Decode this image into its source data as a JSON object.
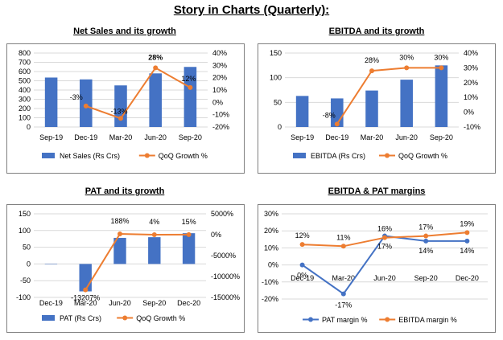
{
  "page": {
    "title": "Story in Charts (Quarterly):"
  },
  "colors": {
    "bar": "#4472C4",
    "line_orange": "#ED7D31",
    "line_blue": "#4472C4",
    "grid": "#d9d9d9",
    "frame": "#808080"
  },
  "chart_data": [
    {
      "type": "bar",
      "title": "Net Sales and its growth",
      "categories": [
        "Sep-19",
        "Dec-19",
        "Mar-20",
        "Jun-20",
        "Sep-20"
      ],
      "y_ticks": [
        "0",
        "100",
        "200",
        "300",
        "400",
        "500",
        "600",
        "700",
        "800"
      ],
      "y2_ticks": [
        "-20%",
        "-10%",
        "0%",
        "10%",
        "20%",
        "30%",
        "40%"
      ],
      "ylim": [
        0,
        800
      ],
      "y2lim": [
        -20,
        40
      ],
      "grid": true,
      "legend_position": "bottom",
      "series": [
        {
          "name": "Net Sales (Rs Crs)",
          "kind": "bar",
          "axis": "left",
          "values": [
            535,
            515,
            450,
            580,
            650
          ]
        },
        {
          "name": "QoQ Growth %",
          "kind": "line",
          "axis": "right",
          "color": "orange",
          "values": [
            null,
            -3,
            -13,
            28,
            12
          ],
          "labels": [
            null,
            "-3%",
            "-13%",
            "28%",
            "12%"
          ]
        }
      ]
    },
    {
      "type": "bar",
      "title": "EBITDA and its growth",
      "categories": [
        "Sep-19",
        "Dec-19",
        "Mar-20",
        "Jun-20",
        "Sep-20"
      ],
      "y_ticks": [
        "0",
        "50",
        "100",
        "150"
      ],
      "y2_ticks": [
        "-10%",
        "0%",
        "10%",
        "20%",
        "30%",
        "40%"
      ],
      "ylim": [
        0,
        150
      ],
      "y2lim": [
        -10,
        40
      ],
      "grid": true,
      "legend_position": "bottom",
      "series": [
        {
          "name": "EBITDA (Rs Crs)",
          "kind": "bar",
          "axis": "left",
          "values": [
            63,
            58,
            74,
            96,
            125
          ]
        },
        {
          "name": "QoQ Growth %",
          "kind": "line",
          "axis": "right",
          "color": "orange",
          "values": [
            null,
            -8,
            28,
            30,
            30
          ],
          "labels": [
            null,
            "-8%",
            "28%",
            "30%",
            "30%"
          ]
        }
      ]
    },
    {
      "type": "bar",
      "title": "PAT and its growth",
      "categories": [
        "Dec-19",
        "Mar-20",
        "Jun-20",
        "Sep-20",
        "Dec-20"
      ],
      "y_ticks": [
        "-100",
        "-50",
        "0",
        "50",
        "100",
        "150"
      ],
      "y2_ticks": [
        "-15000%",
        "-10000%",
        "-5000%",
        "0%",
        "5000%"
      ],
      "ylim": [
        -100,
        150
      ],
      "y2lim": [
        -15000,
        5000
      ],
      "grid": true,
      "legend_position": "bottom",
      "series": [
        {
          "name": "PAT (Rs Crs)",
          "kind": "bar",
          "axis": "left",
          "values": [
            0,
            -82,
            78,
            80,
            92
          ]
        },
        {
          "name": "QoQ Growth %",
          "kind": "line",
          "axis": "right",
          "color": "orange",
          "values": [
            null,
            -13207,
            188,
            4,
            15
          ],
          "labels": [
            null,
            "-13207%",
            "188%",
            "4%",
            "15%"
          ]
        }
      ]
    },
    {
      "type": "line",
      "title": "EBITDA & PAT margins",
      "categories": [
        "Dec-19",
        "Mar-20",
        "Jun-20",
        "Sep-20",
        "Dec-20"
      ],
      "y_ticks": [
        "-20%",
        "-10%",
        "0%",
        "10%",
        "20%",
        "30%"
      ],
      "ylim": [
        -20,
        30
      ],
      "grid": true,
      "legend_position": "bottom",
      "series": [
        {
          "name": "PAT margin %",
          "kind": "line",
          "axis": "left",
          "color": "blue",
          "values": [
            0,
            -17,
            17,
            14,
            14
          ],
          "labels": [
            "0%",
            "-17%",
            "17%",
            "14%",
            "14%"
          ]
        },
        {
          "name": "EBITDA margin %",
          "kind": "line",
          "axis": "left",
          "color": "orange",
          "values": [
            12,
            11,
            16,
            17,
            19
          ],
          "labels": [
            "12%",
            "11%",
            "16%",
            "17%",
            "19%"
          ]
        }
      ]
    }
  ]
}
